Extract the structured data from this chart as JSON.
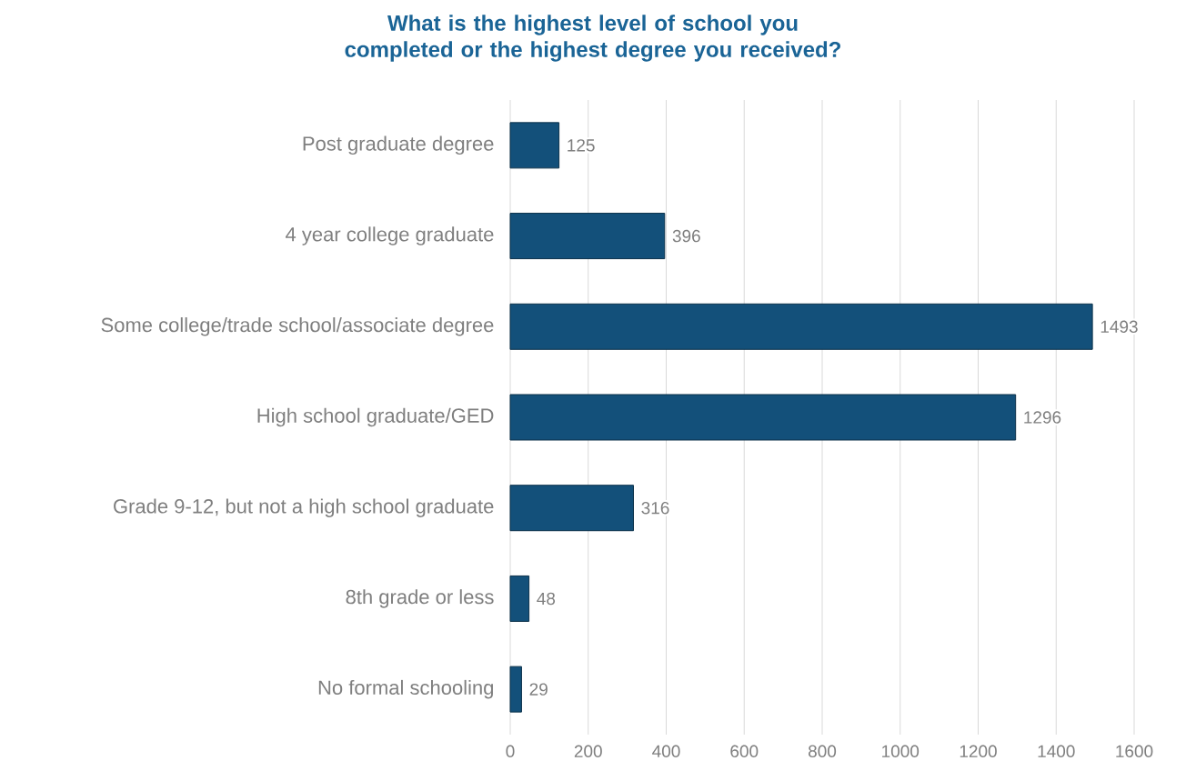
{
  "chart_data": {
    "type": "bar",
    "orientation": "horizontal",
    "title": "What is the highest level of school you completed or the highest degree you received?",
    "categories": [
      "Post graduate degree",
      "4 year college graduate",
      "Some college/trade school/associate degree",
      "High school graduate/GED",
      "Grade 9-12, but not a high school graduate",
      "8th grade or less",
      "No formal schooling"
    ],
    "values": [
      125,
      396,
      1493,
      1296,
      316,
      48,
      29
    ],
    "color": "#13507a",
    "xlim": [
      0,
      1600
    ],
    "xticks": [
      0,
      200,
      400,
      600,
      800,
      1000,
      1200,
      1400,
      1600
    ],
    "grid": "x",
    "data_labels": true
  }
}
